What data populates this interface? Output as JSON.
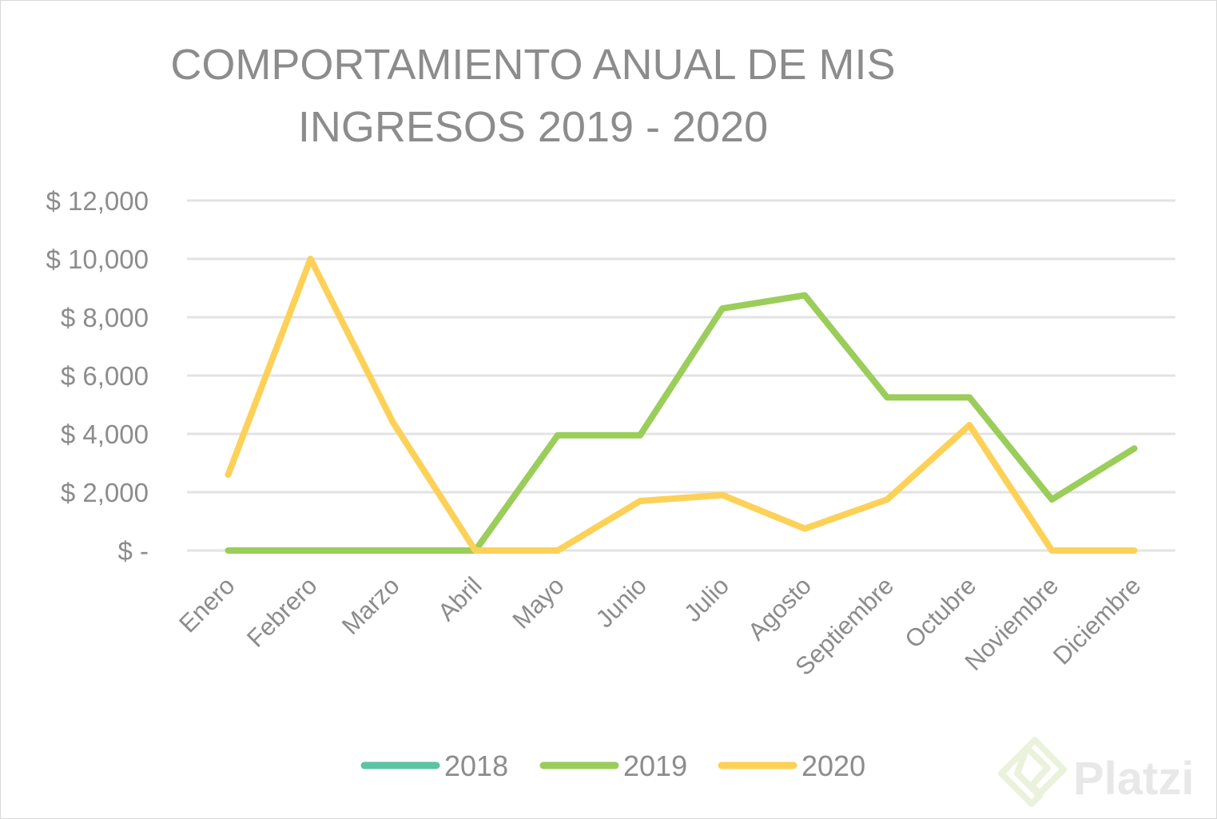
{
  "chart_data": {
    "type": "line",
    "title_lines": [
      "COMPORTAMIENTO ANUAL DE MIS",
      "INGRESOS 2019 - 2020"
    ],
    "categories": [
      "Enero",
      "Febrero",
      "Marzo",
      "Abril",
      "Mayo",
      "Junio",
      "Julio",
      "Agosto",
      "Septiembre",
      "Octubre",
      "Noviembre",
      "Diciembre"
    ],
    "y_ticks": [
      {
        "value": 0,
        "label": "$ -"
      },
      {
        "value": 2000,
        "label": "$ 2,000"
      },
      {
        "value": 4000,
        "label": "$ 4,000"
      },
      {
        "value": 6000,
        "label": "$ 6,000"
      },
      {
        "value": 8000,
        "label": "$ 8,000"
      },
      {
        "value": 10000,
        "label": "$ 10,000"
      },
      {
        "value": 12000,
        "label": "$ 12,000"
      }
    ],
    "ylim": [
      0,
      12000
    ],
    "grid": true,
    "legend_position": "bottom",
    "series": [
      {
        "name": "2018",
        "color": "#5bc4a3",
        "values": [
          null,
          null,
          null,
          null,
          null,
          null,
          null,
          null,
          null,
          null,
          null,
          null
        ]
      },
      {
        "name": "2019",
        "color": "#9acd5a",
        "values": [
          0,
          0,
          0,
          0,
          3950,
          3950,
          8300,
          8750,
          5250,
          5250,
          1750,
          3500
        ]
      },
      {
        "name": "2020",
        "color": "#fdd158",
        "values": [
          2600,
          10000,
          4400,
          0,
          0,
          1700,
          1900,
          750,
          1750,
          4300,
          0,
          0
        ]
      }
    ]
  },
  "watermark": {
    "text": "Platzi",
    "icon": "platzi-logo-icon"
  }
}
